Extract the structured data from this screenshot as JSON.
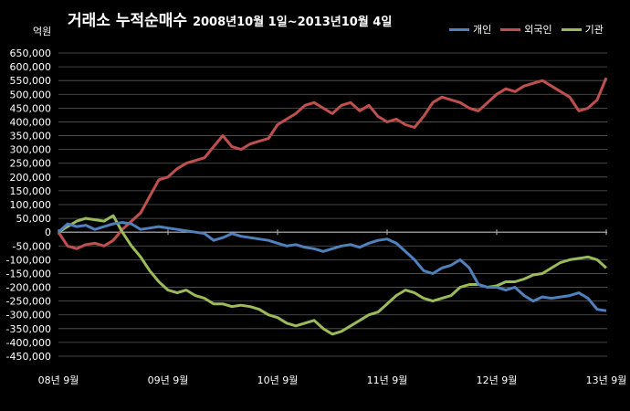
{
  "title_main": "거래소 누적순매수",
  "title_period": "2008년10월 1일~2013년10월 4일",
  "chart_data": {
    "type": "line",
    "title": "거래소 누적순매수 2008년10월 1일~2013년10월 4일",
    "ylabel": "억원",
    "xlabel": "",
    "ylim": [
      -450000,
      650000
    ],
    "xlim": [
      0,
      60.1
    ],
    "grid": true,
    "legend_position": "top-right",
    "y_ticks": [
      -450000,
      -400000,
      -350000,
      -300000,
      -250000,
      -200000,
      -150000,
      -100000,
      -50000,
      0,
      50000,
      100000,
      150000,
      200000,
      250000,
      300000,
      350000,
      400000,
      450000,
      500000,
      550000,
      600000,
      650000
    ],
    "x_ticks": [
      {
        "label": "08년 9월",
        "x": 0
      },
      {
        "label": "09년 9월",
        "x": 12
      },
      {
        "label": "10년 9월",
        "x": 24
      },
      {
        "label": "11년 9월",
        "x": 36
      },
      {
        "label": "12년 9월",
        "x": 48
      },
      {
        "label": "13년 9월",
        "x": 60
      }
    ],
    "series": [
      {
        "name": "개인",
        "color": "#4F81BD",
        "points": [
          [
            0,
            0
          ],
          [
            1,
            30000
          ],
          [
            2,
            20000
          ],
          [
            3,
            25000
          ],
          [
            4,
            10000
          ],
          [
            5,
            20000
          ],
          [
            6,
            30000
          ],
          [
            7,
            35000
          ],
          [
            8,
            30000
          ],
          [
            9,
            10000
          ],
          [
            10,
            15000
          ],
          [
            11,
            20000
          ],
          [
            12,
            15000
          ],
          [
            13,
            10000
          ],
          [
            14,
            5000
          ],
          [
            16,
            -5000
          ],
          [
            17,
            -30000
          ],
          [
            18,
            -20000
          ],
          [
            19,
            -5000
          ],
          [
            20,
            -15000
          ],
          [
            21,
            -20000
          ],
          [
            22,
            -25000
          ],
          [
            23,
            -30000
          ],
          [
            24,
            -40000
          ],
          [
            25,
            -50000
          ],
          [
            26,
            -45000
          ],
          [
            27,
            -55000
          ],
          [
            28,
            -60000
          ],
          [
            29,
            -70000
          ],
          [
            30,
            -60000
          ],
          [
            31,
            -50000
          ],
          [
            32,
            -45000
          ],
          [
            33,
            -55000
          ],
          [
            34,
            -40000
          ],
          [
            35,
            -30000
          ],
          [
            36,
            -25000
          ],
          [
            37,
            -40000
          ],
          [
            38,
            -70000
          ],
          [
            39,
            -100000
          ],
          [
            40,
            -140000
          ],
          [
            41,
            -150000
          ],
          [
            42,
            -130000
          ],
          [
            43,
            -120000
          ],
          [
            44,
            -100000
          ],
          [
            45,
            -130000
          ],
          [
            46,
            -190000
          ],
          [
            47,
            -200000
          ],
          [
            48,
            -200000
          ],
          [
            49,
            -210000
          ],
          [
            50,
            -200000
          ],
          [
            51,
            -230000
          ],
          [
            52,
            -250000
          ],
          [
            53,
            -235000
          ],
          [
            54,
            -240000
          ],
          [
            55,
            -235000
          ],
          [
            56,
            -230000
          ],
          [
            57,
            -220000
          ],
          [
            58,
            -240000
          ],
          [
            59,
            -280000
          ],
          [
            60,
            -285000
          ]
        ]
      },
      {
        "name": "외국인",
        "color": "#C0504D",
        "points": [
          [
            0,
            0
          ],
          [
            1,
            -50000
          ],
          [
            2,
            -60000
          ],
          [
            3,
            -45000
          ],
          [
            4,
            -40000
          ],
          [
            5,
            -50000
          ],
          [
            6,
            -30000
          ],
          [
            7,
            10000
          ],
          [
            8,
            40000
          ],
          [
            9,
            70000
          ],
          [
            10,
            130000
          ],
          [
            11,
            190000
          ],
          [
            12,
            200000
          ],
          [
            13,
            230000
          ],
          [
            14,
            250000
          ],
          [
            15,
            260000
          ],
          [
            16,
            270000
          ],
          [
            17,
            310000
          ],
          [
            18,
            350000
          ],
          [
            19,
            310000
          ],
          [
            20,
            300000
          ],
          [
            21,
            320000
          ],
          [
            22,
            330000
          ],
          [
            23,
            340000
          ],
          [
            24,
            390000
          ],
          [
            25,
            410000
          ],
          [
            26,
            430000
          ],
          [
            27,
            460000
          ],
          [
            28,
            470000
          ],
          [
            29,
            450000
          ],
          [
            30,
            430000
          ],
          [
            31,
            460000
          ],
          [
            32,
            470000
          ],
          [
            33,
            440000
          ],
          [
            34,
            460000
          ],
          [
            35,
            420000
          ],
          [
            36,
            400000
          ],
          [
            37,
            410000
          ],
          [
            38,
            390000
          ],
          [
            39,
            380000
          ],
          [
            40,
            420000
          ],
          [
            41,
            470000
          ],
          [
            42,
            490000
          ],
          [
            43,
            480000
          ],
          [
            44,
            470000
          ],
          [
            45,
            450000
          ],
          [
            46,
            440000
          ],
          [
            47,
            470000
          ],
          [
            48,
            500000
          ],
          [
            49,
            520000
          ],
          [
            50,
            510000
          ],
          [
            51,
            530000
          ],
          [
            52,
            540000
          ],
          [
            53,
            550000
          ],
          [
            54,
            530000
          ],
          [
            55,
            510000
          ],
          [
            56,
            490000
          ],
          [
            57,
            440000
          ],
          [
            58,
            450000
          ],
          [
            59,
            480000
          ],
          [
            60,
            560000
          ]
        ]
      },
      {
        "name": "기관",
        "color": "#9BBB59",
        "points": [
          [
            0,
            0
          ],
          [
            1,
            20000
          ],
          [
            2,
            40000
          ],
          [
            3,
            50000
          ],
          [
            4,
            45000
          ],
          [
            5,
            40000
          ],
          [
            6,
            60000
          ],
          [
            7,
            0
          ],
          [
            8,
            -50000
          ],
          [
            9,
            -90000
          ],
          [
            10,
            -140000
          ],
          [
            11,
            -180000
          ],
          [
            12,
            -210000
          ],
          [
            13,
            -220000
          ],
          [
            14,
            -210000
          ],
          [
            15,
            -230000
          ],
          [
            16,
            -240000
          ],
          [
            17,
            -260000
          ],
          [
            18,
            -260000
          ],
          [
            19,
            -270000
          ],
          [
            20,
            -265000
          ],
          [
            21,
            -270000
          ],
          [
            22,
            -280000
          ],
          [
            23,
            -300000
          ],
          [
            24,
            -310000
          ],
          [
            25,
            -330000
          ],
          [
            26,
            -340000
          ],
          [
            27,
            -330000
          ],
          [
            28,
            -320000
          ],
          [
            29,
            -350000
          ],
          [
            30,
            -370000
          ],
          [
            31,
            -360000
          ],
          [
            32,
            -340000
          ],
          [
            33,
            -320000
          ],
          [
            34,
            -300000
          ],
          [
            35,
            -290000
          ],
          [
            36,
            -260000
          ],
          [
            37,
            -230000
          ],
          [
            38,
            -210000
          ],
          [
            39,
            -220000
          ],
          [
            40,
            -240000
          ],
          [
            41,
            -250000
          ],
          [
            42,
            -240000
          ],
          [
            43,
            -230000
          ],
          [
            44,
            -200000
          ],
          [
            45,
            -190000
          ],
          [
            46,
            -190000
          ],
          [
            47,
            -200000
          ],
          [
            48,
            -195000
          ],
          [
            49,
            -180000
          ],
          [
            50,
            -180000
          ],
          [
            51,
            -170000
          ],
          [
            52,
            -155000
          ],
          [
            53,
            -150000
          ],
          [
            54,
            -130000
          ],
          [
            55,
            -110000
          ],
          [
            56,
            -100000
          ],
          [
            57,
            -95000
          ],
          [
            58,
            -90000
          ],
          [
            59,
            -100000
          ],
          [
            60,
            -130000
          ]
        ]
      }
    ]
  }
}
